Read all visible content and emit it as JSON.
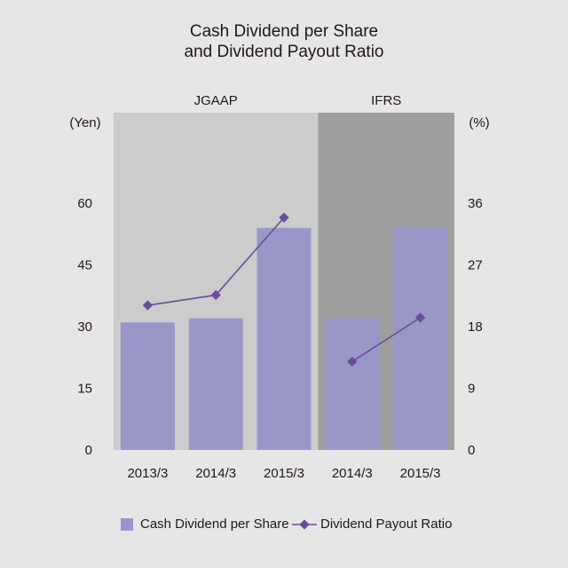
{
  "chart_data": {
    "type": "bar",
    "title": "Cash Dividend per Share",
    "subtitle": "and Dividend Payout Ratio",
    "sections": [
      {
        "label": "JGAAP",
        "categories": [
          "2013/3",
          "2014/3",
          "2015/3"
        ],
        "color": "#cccccc"
      },
      {
        "label": "IFRS",
        "categories": [
          "2014/3",
          "2015/3"
        ],
        "color": "#9e9e9e"
      }
    ],
    "categories": [
      "2013/3",
      "2014/3",
      "2015/3",
      "2014/3",
      "2015/3"
    ],
    "series": [
      {
        "name": "Cash Dividend per Share",
        "type": "bar",
        "axis": "left",
        "color": "#9897c8",
        "values": [
          31,
          32,
          54,
          32,
          54
        ]
      },
      {
        "name": "Dividend Payout Ratio",
        "type": "line",
        "axis": "right",
        "color": "#6a4c9c",
        "segments": [
          [
            21.1,
            22.6,
            33.9
          ],
          [
            12.9,
            19.3
          ]
        ]
      }
    ],
    "left_axis": {
      "unit": "(Yen)",
      "ticks": [
        0,
        15,
        30,
        45,
        60
      ],
      "ylim": [
        0,
        82
      ]
    },
    "right_axis": {
      "unit": "(%)",
      "ticks": [
        0,
        9,
        18,
        27,
        36
      ],
      "ylim": [
        0,
        49.2
      ]
    },
    "legend": {
      "position": "bottom"
    },
    "grid": false
  }
}
